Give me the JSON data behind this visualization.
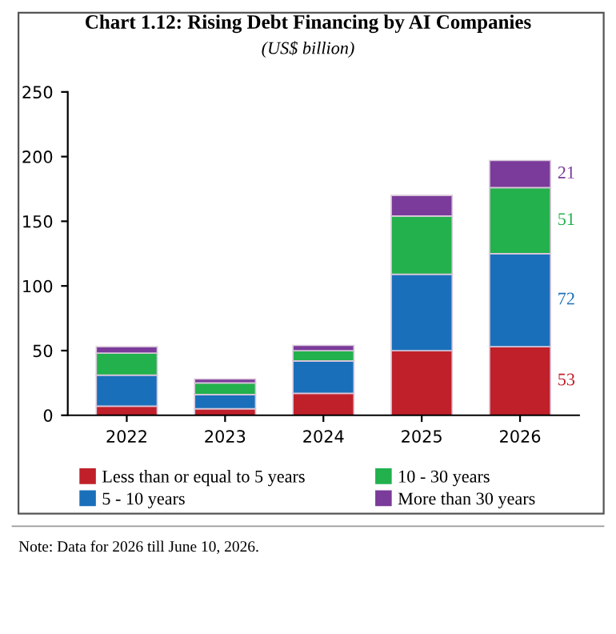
{
  "chart_data": {
    "type": "bar",
    "title": "Chart 1.12: Rising Debt Financing by AI Companies",
    "subtitle": "(US$ billion)",
    "categories": [
      "2022",
      "2023",
      "2024",
      "2025",
      "2026"
    ],
    "stacked": true,
    "series": [
      {
        "name": "Less than or equal to 5 years",
        "color": "#c0202a",
        "values": [
          7,
          5,
          17,
          50,
          53
        ],
        "value_labels": [
          null,
          null,
          null,
          null,
          "53"
        ]
      },
      {
        "name": "5 - 10 years",
        "color": "#1a6fba",
        "values": [
          24,
          11,
          25,
          59,
          72
        ],
        "value_labels": [
          null,
          null,
          null,
          null,
          "72"
        ]
      },
      {
        "name": "10 - 30 years",
        "color": "#22b14c",
        "values": [
          17,
          9,
          8,
          45,
          51
        ],
        "value_labels": [
          null,
          null,
          null,
          null,
          "51"
        ]
      },
      {
        "name": "More than 30 years",
        "color": "#7a3b9a",
        "values": [
          5,
          3,
          4,
          16,
          21
        ],
        "value_labels": [
          null,
          null,
          null,
          null,
          "21"
        ]
      }
    ],
    "ylim": [
      0,
      250
    ],
    "yticks": [
      0,
      50,
      100,
      150,
      200,
      250
    ],
    "grid": false,
    "legend": "bottom",
    "annotations": [
      "Note: Data for 2026 till June 10, 2026."
    ]
  }
}
